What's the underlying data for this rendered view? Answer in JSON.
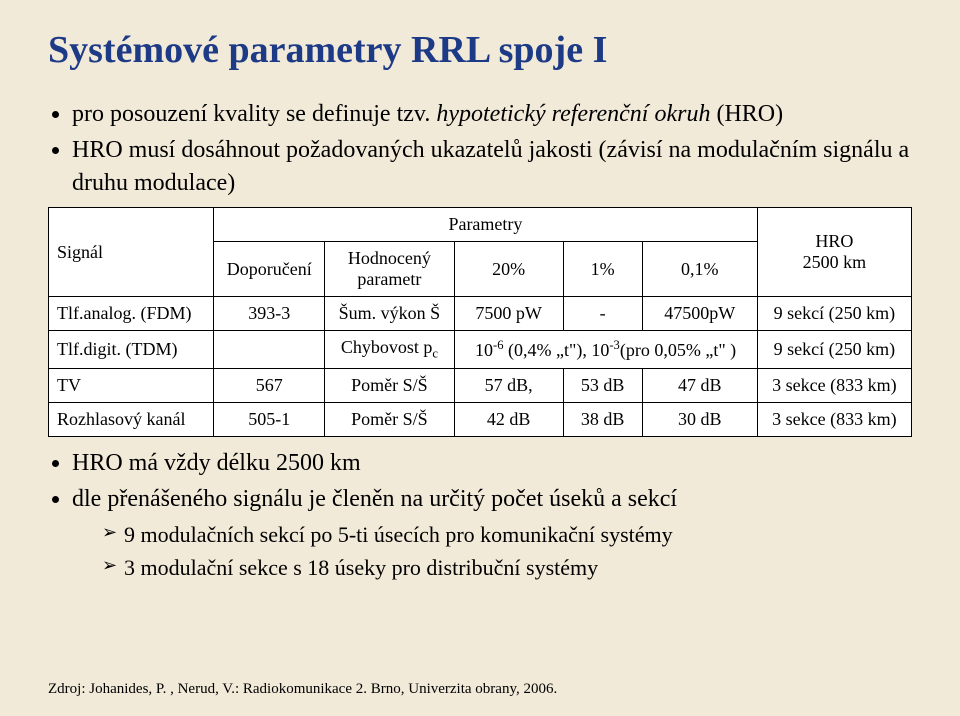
{
  "title": "Systémové parametry RRL spoje I",
  "bullets_top": [
    {
      "html": "pro posouzení kvality se definuje tzv. <span class='ital'>hypotetický referenční okruh</span> (HRO)"
    },
    {
      "html": "HRO musí dosáhnout požadovaných ukazatelů jakosti (závisí na modulačním signálu a druhu modulace)"
    }
  ],
  "table": {
    "background_color": "#ffffff",
    "border_color": "#000000",
    "font_size": 18,
    "header": {
      "left_top": "",
      "left_bottom": "Signál",
      "params_top": "Parametry",
      "col_doporuceni": "Doporučení",
      "col_hodnoceny": "Hodnocený parametr",
      "col_20": "20%",
      "col_1": "1%",
      "col_01": "0,1%",
      "col_hro": "HRO 2500 km"
    },
    "rows": [
      {
        "signal": "Tlf.analog. (FDM)",
        "doporuceni": "393-3",
        "hodnoceny": "Šum. výkon Š",
        "v20": "7500 pW",
        "v1": "-",
        "v01": "47500pW",
        "hro": "9 sekcí (250 km)"
      },
      {
        "signal": "Tlf.digit. (TDM)",
        "doporuceni": "",
        "hodnoceny_html": "Chybovost p<sub>c</sub>",
        "wide_html": "10<sup>-6</sup> (0,4% „t\"), 10<sup>-3</sup>(pro 0,05% „t\" )",
        "hro": "9 sekcí (250 km)"
      },
      {
        "signal": "TV",
        "doporuceni": "567",
        "hodnoceny": "Poměr S/Š",
        "v20": "57 dB,",
        "v1": "53 dB",
        "v01": "47 dB",
        "hro": "3 sekce (833 km)"
      },
      {
        "signal": "Rozhlasový kanál",
        "doporuceni": "505-1",
        "hodnoceny": "Poměr S/Š",
        "v20": "42 dB",
        "v1": "38 dB",
        "v01": "30 dB",
        "hro": "3 sekce (833 km)"
      }
    ]
  },
  "bullets_bottom": [
    {
      "text": "HRO má vždy délku 2500 km"
    },
    {
      "text": "dle přenášeného signálu je členěn na určitý počet úseků a sekcí",
      "sub": [
        "9 modulačních sekcí po 5-ti úsecích pro komunikační systémy",
        "3 modulační sekce s 18 úseky pro distribuční systémy"
      ]
    }
  ],
  "source": "Zdroj: Johanides, P. , Nerud, V.: Radiokomunikace 2. Brno, Univerzita obrany, 2006."
}
